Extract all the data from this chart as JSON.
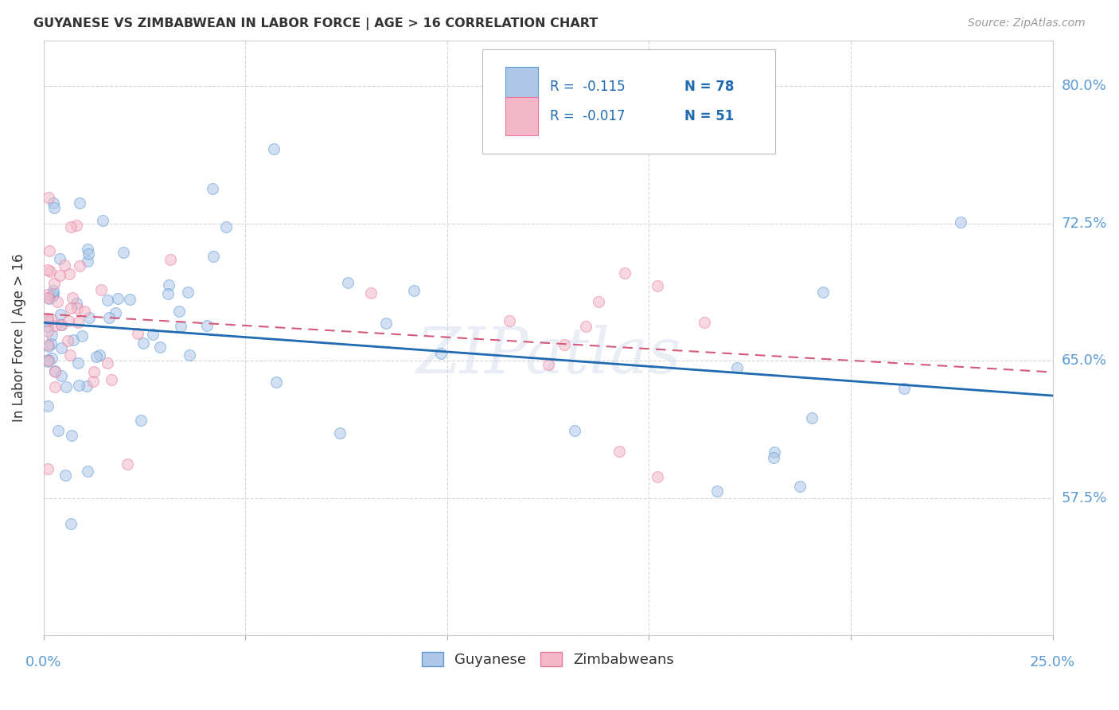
{
  "title": "GUYANESE VS ZIMBABWEAN IN LABOR FORCE | AGE > 16 CORRELATION CHART",
  "source": "Source: ZipAtlas.com",
  "ylabel": "In Labor Force | Age > 16",
  "x_min": 0.0,
  "x_max": 0.25,
  "y_min": 0.5,
  "y_max": 0.825,
  "x_ticks": [
    0.0,
    0.05,
    0.1,
    0.15,
    0.2,
    0.25
  ],
  "x_tick_labels_show": [
    "0.0%",
    "25.0%"
  ],
  "x_tick_labels_pos": [
    0.0,
    0.25
  ],
  "y_ticks": [
    0.5,
    0.575,
    0.65,
    0.725,
    0.8
  ],
  "y_tick_labels": [
    "",
    "57.5%",
    "65.0%",
    "72.5%",
    "80.0%"
  ],
  "guyanese_color": "#aec6e8",
  "guyanese_edge_color": "#5b9bd5",
  "zimbabwean_color": "#f4b8c8",
  "zimbabwean_edge_color": "#e8789a",
  "guyanese_line_color": "#1f6ab0",
  "zimbabwean_line_color": "#d45a7a",
  "watermark": "ZIPatlas",
  "legend_r_guyanese": "R =  -0.115",
  "legend_n_guyanese": "N = 78",
  "legend_r_zimbabwean": "R =  -0.017",
  "legend_n_zimbabwean": "N = 51",
  "legend_text_color": "#1a1a2e",
  "legend_value_color": "#1f6ab0",
  "legend_n_color": "#1f6ab0",
  "background_color": "#ffffff",
  "grid_color": "#cccccc",
  "tick_label_color": "#5b9bd5",
  "marker_size": 100,
  "marker_alpha": 0.55
}
